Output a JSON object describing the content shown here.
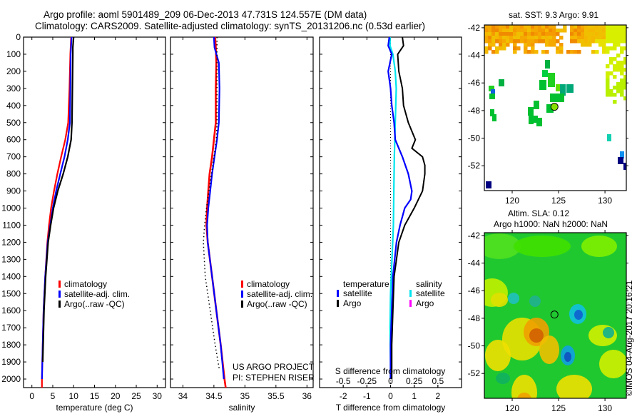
{
  "header": {
    "title_line1": "Argo profile: aoml 5901489_209 06-Dec-2013 47.731S 124.557E (DM data)",
    "title_line2": "Climatology: CARS2009. Satellite-adjusted climatology: synTS_20131206.nc (0.53d earlier)"
  },
  "colors": {
    "climatology": "#ff0000",
    "satellite": "#0000ff",
    "argo": "#000000",
    "salinity_satellite": "#00e5ee",
    "salinity_argo": "#ff00ff"
  },
  "chart_data": [
    {
      "type": "line",
      "name": "temperature-profile",
      "xlabel": "temperature (deg C)",
      "ylabel": "",
      "xlim": [
        -2,
        32
      ],
      "ylim": [
        2050,
        0
      ],
      "xticks": [
        0,
        5,
        10,
        15,
        20,
        25,
        30
      ],
      "yticks": [
        0,
        100,
        200,
        300,
        400,
        500,
        600,
        700,
        800,
        900,
        1000,
        1100,
        1200,
        1300,
        1400,
        1500,
        1600,
        1700,
        1800,
        1900,
        2000
      ],
      "legend": [
        "climatology",
        "satellite-adj. clim.",
        "Argo(..raw -QC)"
      ],
      "series": [
        {
          "name": "climatology",
          "depth": [
            0,
            100,
            300,
            500,
            600,
            700,
            800,
            900,
            1000,
            1100,
            1200,
            1400,
            1600,
            1800,
            2000,
            2050
          ],
          "values": [
            9.4,
            9.2,
            9.0,
            8.7,
            8.0,
            7.0,
            6.1,
            5.3,
            4.6,
            4.1,
            3.7,
            3.2,
            2.8,
            2.6,
            2.4,
            2.4
          ]
        },
        {
          "name": "satellite-adj. clim.",
          "depth": [
            0,
            100,
            300,
            500,
            600,
            700,
            800,
            900,
            1000,
            1100,
            1200,
            1400,
            1600,
            1800,
            2000
          ],
          "values": [
            9.5,
            9.3,
            9.2,
            9.1,
            8.6,
            7.8,
            6.8,
            5.8,
            5.0,
            4.4,
            3.8,
            3.2,
            2.8,
            2.6,
            2.4
          ]
        },
        {
          "name": "Argo(..raw -QC)",
          "depth": [
            0,
            60,
            100,
            300,
            500,
            600,
            700,
            800,
            900,
            1000,
            1100,
            1200,
            1400,
            1600,
            1800,
            1900
          ],
          "values": [
            10.0,
            9.8,
            9.8,
            9.7,
            9.6,
            9.4,
            8.6,
            7.5,
            6.2,
            5.2,
            4.5,
            3.9,
            3.3,
            2.9,
            2.7,
            2.6
          ]
        }
      ]
    },
    {
      "type": "line",
      "name": "salinity-profile",
      "xlabel": "salinity",
      "xlim": [
        33.8,
        36.1
      ],
      "ylim": [
        2050,
        0
      ],
      "xticks": [
        34,
        34.5,
        35,
        35.5,
        36
      ],
      "xticklabels": [
        "34",
        "34.5",
        "35",
        "35.5",
        "36"
      ],
      "legend": [
        "climatology",
        "satellite-adj. clim.",
        "Argo(..raw -QC)"
      ],
      "annotation": [
        "US ARGO PROJECT",
        "PI: STEPHEN RISER"
      ],
      "series": [
        {
          "name": "climatology",
          "depth": [
            0,
            60,
            150,
            300,
            500,
            600,
            700,
            800,
            900,
            1000,
            1100,
            1200,
            1400,
            1600,
            1800,
            2000,
            2050
          ],
          "values": [
            34.52,
            34.53,
            34.54,
            34.53,
            34.53,
            34.5,
            34.47,
            34.43,
            34.41,
            34.39,
            34.38,
            34.4,
            34.47,
            34.54,
            34.61,
            34.67,
            34.69
          ]
        },
        {
          "name": "satellite-adj. clim.",
          "depth": [
            0,
            60,
            150,
            300,
            500,
            600,
            700,
            800,
            900,
            1000,
            1100,
            1200,
            1400,
            1600,
            1800,
            2000
          ],
          "values": [
            34.5,
            34.51,
            34.58,
            34.59,
            34.58,
            34.55,
            34.51,
            34.47,
            34.44,
            34.41,
            34.39,
            34.4,
            34.47,
            34.54,
            34.61,
            34.66
          ]
        },
        {
          "name": "Argo(..raw -QC)",
          "depth": [
            0,
            100,
            300,
            500,
            600,
            700,
            800,
            900,
            1000,
            1100,
            1200,
            1400,
            1600,
            1800,
            1950
          ],
          "values": [
            34.55,
            34.55,
            34.55,
            34.55,
            34.54,
            34.5,
            34.46,
            34.42,
            34.38,
            34.35,
            34.33,
            34.36,
            34.44,
            34.52,
            34.59
          ]
        }
      ]
    },
    {
      "type": "line",
      "name": "difference-profile",
      "xlabel": "T difference from climatology",
      "xlim": [
        -3,
        3
      ],
      "ylim": [
        2050,
        0
      ],
      "xticks": [
        -2,
        -1,
        0,
        1,
        2
      ],
      "top_axis_label": "S difference from climatology",
      "top_xticks": [
        "-0.5",
        "-0.25",
        "0",
        "0.25",
        "0.5"
      ],
      "legend": {
        "temperature_header": "temperature",
        "salinity_header": "salinity",
        "temperature": [
          "satellite",
          "Argo"
        ],
        "salinity": [
          "satellite",
          "Argo"
        ]
      },
      "series": [
        {
          "name": "temperature satellite",
          "depth": [
            0,
            50,
            100,
            200,
            300,
            400,
            500,
            600,
            700,
            800,
            900,
            950,
            1000,
            1100,
            1200,
            1400,
            1600,
            1800,
            2000
          ],
          "values": [
            -0.05,
            -0.1,
            0.05,
            -0.1,
            0.0,
            0.05,
            0.15,
            0.2,
            0.5,
            0.75,
            0.9,
            0.85,
            0.6,
            0.4,
            0.25,
            0.1,
            0.05,
            0.0,
            0.0
          ]
        },
        {
          "name": "temperature Argo",
          "depth": [
            0,
            50,
            100,
            200,
            300,
            400,
            500,
            600,
            650,
            700,
            750,
            800,
            900,
            1000,
            1100,
            1200,
            1400,
            1600,
            1800,
            2000
          ],
          "values": [
            0.5,
            0.55,
            0.3,
            0.35,
            0.5,
            0.55,
            0.75,
            1.05,
            0.9,
            1.35,
            1.45,
            1.45,
            1.35,
            1.0,
            0.6,
            0.35,
            0.15,
            0.1,
            0.05,
            0.05
          ]
        },
        {
          "name": "salinity satellite",
          "depth": [
            0,
            50,
            100,
            200,
            300,
            500,
            700,
            900,
            1100,
            1300,
            1500,
            1700,
            1900,
            2000
          ],
          "values": [
            -0.005,
            -0.005,
            0.025,
            0.05,
            0.06,
            0.05,
            0.04,
            0.035,
            0.03,
            0.015,
            0.0,
            -0.005,
            0.0,
            0.0
          ]
        }
      ]
    },
    {
      "type": "heatmap",
      "name": "sst-map",
      "title": "sat. SST: 9.3 Argo: 9.91",
      "xlim": [
        117,
        132.3
      ],
      "ylim": [
        -53.8,
        -41.8
      ],
      "xticks": [
        120,
        125,
        130
      ],
      "yticks": [
        -42,
        -44,
        -46,
        -48,
        -50,
        -52
      ],
      "marker": {
        "lon": 124.557,
        "lat": -47.731
      }
    },
    {
      "type": "heatmap",
      "name": "sla-map",
      "title_line1": "Altim. SLA: 0.12",
      "title_line2": "Argo h1000: NaN h2000: NaN",
      "xlim": [
        117,
        132.3
      ],
      "ylim": [
        -53.8,
        -41.8
      ],
      "xticks": [
        120,
        125,
        130
      ],
      "yticks": [
        -42,
        -44,
        -46,
        -48,
        -50,
        -52
      ],
      "marker": {
        "lon": 124.557,
        "lat": -47.731
      }
    }
  ],
  "credit": "©IMOS 04-Aug-2017 20:16:21"
}
